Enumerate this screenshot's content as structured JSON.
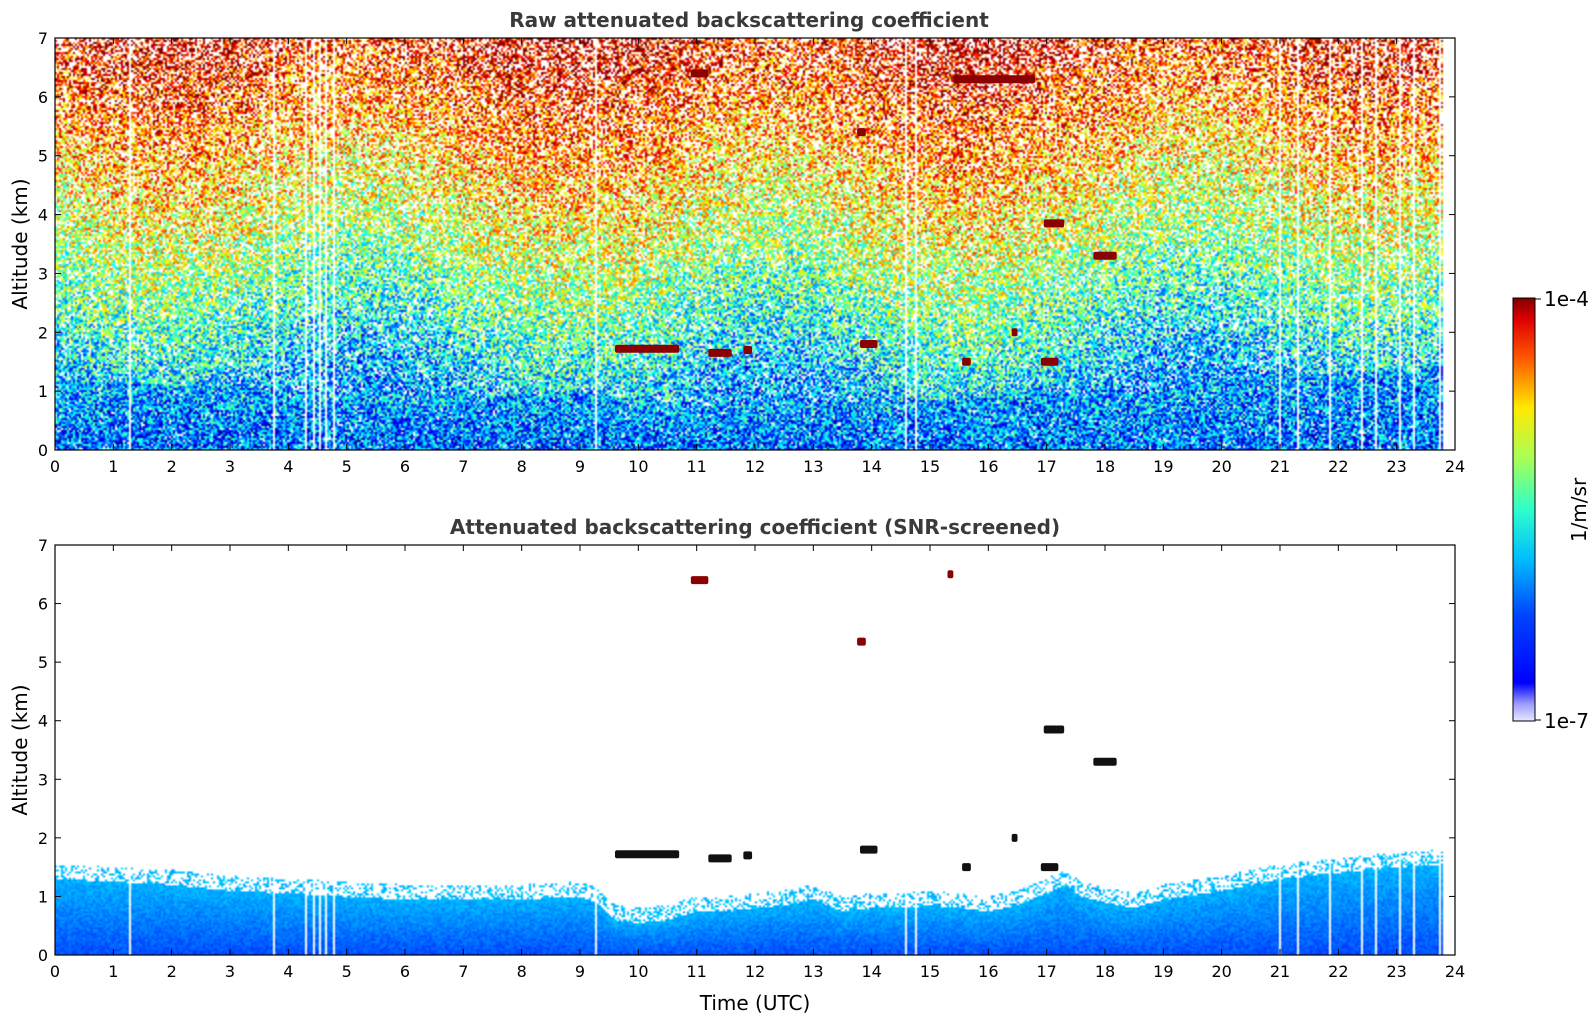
{
  "figure": {
    "colors": {
      "axes": "#000000",
      "title": "#3a3a3a",
      "cloud_core": "#8b0000",
      "screened_background": "#ffffff"
    },
    "colorbar": {
      "label": "1/m/sr",
      "max_label": "1e-4",
      "min_label": "1e-7",
      "colormap": "jet",
      "scale": "log",
      "range": [
        1e-07,
        0.0001
      ]
    }
  },
  "chart_data": [
    {
      "type": "heatmap",
      "title": "Raw attenuated backscattering coefficient",
      "xlabel": "",
      "ylabel": "Altitude (km)",
      "xlim": [
        0,
        24
      ],
      "ylim": [
        0,
        7
      ],
      "xticks": [
        "0",
        "1",
        "2",
        "3",
        "4",
        "5",
        "6",
        "7",
        "8",
        "9",
        "10",
        "11",
        "12",
        "13",
        "14",
        "15",
        "16",
        "17",
        "18",
        "19",
        "20",
        "21",
        "22",
        "23",
        "24"
      ],
      "yticks": [
        "0",
        "1",
        "2",
        "3",
        "4",
        "5",
        "6",
        "7"
      ],
      "time_end": 23.8,
      "noisy": true,
      "boundary_layer_top": [
        [
          0,
          1.2
        ],
        [
          2,
          1.1
        ],
        [
          4,
          1.0
        ],
        [
          6,
          0.95
        ],
        [
          8,
          0.95
        ],
        [
          9.3,
          1.0
        ],
        [
          10,
          0.7
        ],
        [
          12,
          0.8
        ],
        [
          14,
          0.8
        ],
        [
          15,
          0.85
        ],
        [
          17,
          1.0
        ],
        [
          18,
          0.9
        ],
        [
          19,
          1.0
        ],
        [
          20,
          1.2
        ],
        [
          22,
          1.3
        ],
        [
          23.8,
          1.4
        ]
      ],
      "cloud_layers": [
        {
          "x0": 9.6,
          "x1": 10.7,
          "y": 1.72
        },
        {
          "x0": 11.2,
          "x1": 11.6,
          "y": 1.65
        },
        {
          "x0": 11.8,
          "x1": 11.95,
          "y": 1.7
        },
        {
          "x0": 10.9,
          "x1": 11.2,
          "y": 6.4
        },
        {
          "x0": 13.75,
          "x1": 13.9,
          "y": 5.4
        },
        {
          "x0": 13.8,
          "x1": 14.1,
          "y": 1.8
        },
        {
          "x0": 17.8,
          "x1": 18.2,
          "y": 3.3
        },
        {
          "x0": 16.9,
          "x1": 17.2,
          "y": 1.5
        },
        {
          "x0": 16.95,
          "x1": 17.3,
          "y": 3.85
        },
        {
          "x0": 15.55,
          "x1": 15.7,
          "y": 1.5
        },
        {
          "x0": 16.4,
          "x1": 16.5,
          "y": 2.0
        },
        {
          "x0": 15.4,
          "x1": 16.8,
          "y": 6.3
        }
      ],
      "data_gaps": [
        1.28,
        2.02,
        3.75,
        4.05,
        4.3,
        4.45,
        4.55,
        4.65,
        4.78,
        9.22,
        9.27,
        10.25,
        13.85,
        14.6,
        14.75,
        21.0,
        21.05,
        21.15,
        21.3,
        21.85,
        22.15,
        22.25,
        22.4,
        22.65,
        22.9,
        23.05,
        23.3,
        23.55,
        23.75
      ]
    },
    {
      "type": "heatmap",
      "title": "Attenuated backscattering coefficient (SNR-screened)",
      "xlabel": "Time (UTC)",
      "ylabel": "Altitude (km)",
      "xlim": [
        0,
        24
      ],
      "ylim": [
        0,
        7
      ],
      "xticks": [
        "0",
        "1",
        "2",
        "3",
        "4",
        "5",
        "6",
        "7",
        "8",
        "9",
        "10",
        "11",
        "12",
        "13",
        "14",
        "15",
        "16",
        "17",
        "18",
        "19",
        "20",
        "21",
        "22",
        "23",
        "24"
      ],
      "yticks": [
        "0",
        "1",
        "2",
        "3",
        "4",
        "5",
        "6",
        "7"
      ],
      "time_end": 23.8,
      "noisy": false,
      "boundary_layer_top": [
        [
          0,
          1.3
        ],
        [
          1,
          1.25
        ],
        [
          2,
          1.2
        ],
        [
          3,
          1.1
        ],
        [
          4,
          1.05
        ],
        [
          5,
          1.0
        ],
        [
          6,
          0.95
        ],
        [
          7,
          0.95
        ],
        [
          8,
          0.95
        ],
        [
          9,
          1.0
        ],
        [
          9.3,
          0.9
        ],
        [
          9.6,
          0.6
        ],
        [
          10,
          0.55
        ],
        [
          10.5,
          0.6
        ],
        [
          11,
          0.75
        ],
        [
          11.5,
          0.75
        ],
        [
          12,
          0.8
        ],
        [
          12.5,
          0.85
        ],
        [
          13,
          0.95
        ],
        [
          13.5,
          0.75
        ],
        [
          14,
          0.8
        ],
        [
          14.5,
          0.8
        ],
        [
          15,
          0.85
        ],
        [
          15.5,
          0.8
        ],
        [
          16,
          0.75
        ],
        [
          16.5,
          0.85
        ],
        [
          17,
          1.05
        ],
        [
          17.3,
          1.2
        ],
        [
          17.6,
          1.0
        ],
        [
          18,
          0.9
        ],
        [
          18.5,
          0.8
        ],
        [
          19,
          0.95
        ],
        [
          20,
          1.1
        ],
        [
          21,
          1.3
        ],
        [
          22,
          1.4
        ],
        [
          23,
          1.5
        ],
        [
          23.8,
          1.55
        ]
      ],
      "cloud_layers": [
        {
          "x0": 9.6,
          "x1": 10.7,
          "y": 1.72
        },
        {
          "x0": 11.2,
          "x1": 11.6,
          "y": 1.65
        },
        {
          "x0": 11.8,
          "x1": 11.95,
          "y": 1.7
        },
        {
          "x0": 10.9,
          "x1": 11.2,
          "y": 6.4
        },
        {
          "x0": 13.75,
          "x1": 13.9,
          "y": 5.35
        },
        {
          "x0": 13.8,
          "x1": 14.1,
          "y": 1.8
        },
        {
          "x0": 17.8,
          "x1": 18.2,
          "y": 3.3
        },
        {
          "x0": 16.9,
          "x1": 17.2,
          "y": 1.5
        },
        {
          "x0": 16.95,
          "x1": 17.3,
          "y": 3.85
        },
        {
          "x0": 15.55,
          "x1": 15.7,
          "y": 1.5
        },
        {
          "x0": 16.4,
          "x1": 16.5,
          "y": 2.0
        },
        {
          "x0": 15.3,
          "x1": 15.4,
          "y": 6.5
        }
      ],
      "data_gaps": [
        1.28,
        2.02,
        3.75,
        4.05,
        4.3,
        4.45,
        4.55,
        4.65,
        4.78,
        9.22,
        9.27,
        10.25,
        13.85,
        14.6,
        14.75,
        21.0,
        21.05,
        21.15,
        21.3,
        21.85,
        22.15,
        22.25,
        22.4,
        22.65,
        22.9,
        23.05,
        23.3,
        23.55,
        23.75
      ]
    }
  ]
}
